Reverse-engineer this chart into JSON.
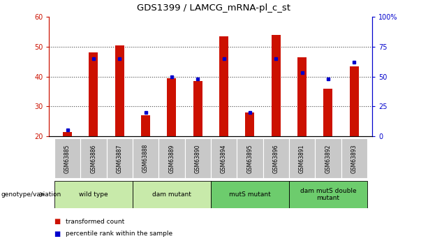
{
  "title": "GDS1399 / LAMCG_mRNA-pl_c_st",
  "samples": [
    "GSM63885",
    "GSM63886",
    "GSM63887",
    "GSM63888",
    "GSM63889",
    "GSM63890",
    "GSM63894",
    "GSM63895",
    "GSM63896",
    "GSM63891",
    "GSM63892",
    "GSM63893"
  ],
  "transformed_count": [
    21.5,
    48,
    50.5,
    27,
    39.5,
    38.5,
    53.5,
    28,
    54,
    46.5,
    36,
    43.5
  ],
  "percentile_rank_pct": [
    5,
    65,
    65,
    20,
    50,
    48,
    65,
    20,
    65,
    53,
    48,
    62
  ],
  "ymin": 20,
  "ymax": 60,
  "yticks": [
    20,
    30,
    40,
    50,
    60
  ],
  "right_yticks": [
    0,
    25,
    50,
    75,
    100
  ],
  "right_ytick_labels": [
    "0",
    "25",
    "50",
    "75",
    "100%"
  ],
  "groups": [
    {
      "label": "wild type",
      "start": 0,
      "end": 3,
      "color": "#c8eaaa"
    },
    {
      "label": "dam mutant",
      "start": 3,
      "end": 6,
      "color": "#c8eaaa"
    },
    {
      "label": "mutS mutant",
      "start": 6,
      "end": 9,
      "color": "#6dcc6d"
    },
    {
      "label": "dam mutS double\nmutant",
      "start": 9,
      "end": 12,
      "color": "#6dcc6d"
    }
  ],
  "bar_color": "#cc1100",
  "dot_color": "#0000cc",
  "sample_bg_color": "#c8c8c8",
  "legend_dot_label": "percentile rank within the sample",
  "legend_bar_label": "transformed count",
  "xlabel_left": "genotype/variation",
  "left_axis_color": "#cc1100",
  "right_axis_color": "#0000cc",
  "grid_color": "#444444"
}
